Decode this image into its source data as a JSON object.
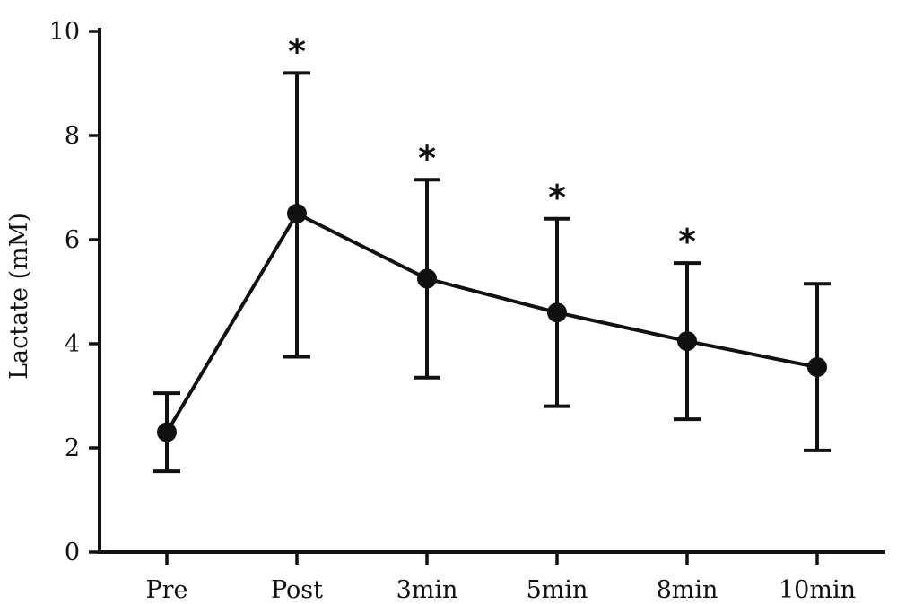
{
  "chart_data": {
    "type": "line",
    "title": "",
    "xlabel": "",
    "ylabel": "Lactate (mM)",
    "ylim": [
      0,
      10
    ],
    "yticks": [
      0,
      2,
      4,
      6,
      8,
      10
    ],
    "grid": false,
    "legend": "none",
    "categories": [
      "Pre",
      "Post",
      "3min",
      "5min",
      "8min",
      "10min"
    ],
    "series": [
      {
        "values": [
          2.3,
          6.5,
          5.25,
          4.6,
          4.05,
          3.55
        ],
        "error_upper": [
          3.05,
          9.2,
          7.15,
          6.4,
          5.55,
          5.15
        ],
        "error_lower": [
          1.55,
          3.75,
          3.35,
          2.8,
          2.55,
          1.95
        ],
        "significant": [
          false,
          true,
          true,
          true,
          true,
          false
        ]
      }
    ],
    "significance_marker": "*",
    "color": "#111111"
  }
}
